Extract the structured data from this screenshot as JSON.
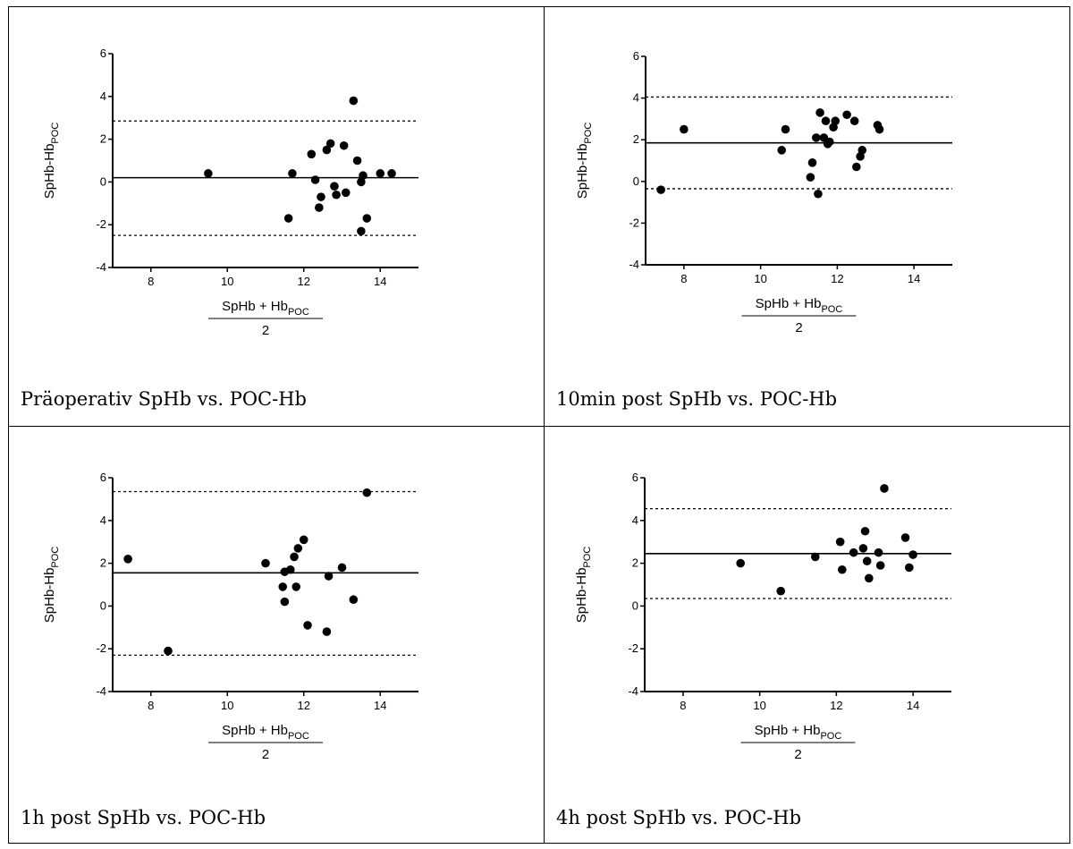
{
  "chart_data": [
    {
      "type": "scatter",
      "caption": "Präoperativ SpHb vs. POC-Hb",
      "ylabel_main": "SpHb-Hb",
      "ylabel_sub": "POC",
      "xlabel_main": "SpHb + Hb",
      "xlabel_sub": "POC",
      "xlabel_denominator": "2",
      "xlim": [
        7,
        15
      ],
      "ylim": [
        -4,
        6
      ],
      "xticks": [
        8,
        10,
        12,
        14
      ],
      "yticks": [
        6,
        4,
        2,
        0,
        -2,
        -4
      ],
      "mean_line": 0.2,
      "loa_upper": 2.85,
      "loa_lower": -2.5,
      "points": [
        [
          9.5,
          0.4
        ],
        [
          11.6,
          -1.7
        ],
        [
          11.7,
          0.4
        ],
        [
          12.2,
          1.3
        ],
        [
          12.3,
          0.1
        ],
        [
          12.4,
          -1.2
        ],
        [
          12.45,
          -0.7
        ],
        [
          12.6,
          1.5
        ],
        [
          12.7,
          1.8
        ],
        [
          12.8,
          -0.2
        ],
        [
          12.85,
          -0.6
        ],
        [
          13.05,
          1.7
        ],
        [
          13.1,
          -0.5
        ],
        [
          13.3,
          3.8
        ],
        [
          13.4,
          1.0
        ],
        [
          13.5,
          0.0
        ],
        [
          13.5,
          -2.3
        ],
        [
          13.55,
          0.3
        ],
        [
          13.65,
          -1.7
        ],
        [
          14.0,
          0.4
        ],
        [
          14.3,
          0.4
        ]
      ]
    },
    {
      "type": "scatter",
      "caption": "10min post SpHb vs. POC-Hb",
      "ylabel_main": "SpHb-Hb",
      "ylabel_sub": "POC",
      "xlabel_main": "SpHb + Hb",
      "xlabel_sub": "POC",
      "xlabel_denominator": "2",
      "xlim": [
        7,
        15
      ],
      "ylim": [
        -4,
        6
      ],
      "xticks": [
        8,
        10,
        12,
        14
      ],
      "yticks": [
        6,
        4,
        2,
        0,
        -2,
        -4
      ],
      "mean_line": 1.85,
      "loa_upper": 4.05,
      "loa_lower": -0.35,
      "points": [
        [
          7.4,
          -0.4
        ],
        [
          8.0,
          2.5
        ],
        [
          10.55,
          1.5
        ],
        [
          10.65,
          2.5
        ],
        [
          11.3,
          0.2
        ],
        [
          11.35,
          0.9
        ],
        [
          11.45,
          2.1
        ],
        [
          11.5,
          -0.6
        ],
        [
          11.55,
          3.3
        ],
        [
          11.65,
          2.1
        ],
        [
          11.7,
          2.9
        ],
        [
          11.75,
          1.8
        ],
        [
          11.8,
          1.9
        ],
        [
          11.9,
          2.6
        ],
        [
          11.95,
          2.9
        ],
        [
          12.25,
          3.2
        ],
        [
          12.45,
          2.9
        ],
        [
          12.5,
          0.7
        ],
        [
          12.6,
          1.2
        ],
        [
          12.65,
          1.5
        ],
        [
          13.05,
          2.7
        ],
        [
          13.1,
          2.5
        ]
      ]
    },
    {
      "type": "scatter",
      "caption": "1h post SpHb vs. POC-Hb",
      "ylabel_main": "SpHb-Hb",
      "ylabel_sub": "POC",
      "xlabel_main": "SpHb + Hb",
      "xlabel_sub": "POC",
      "xlabel_denominator": "2",
      "xlim": [
        7,
        15
      ],
      "ylim": [
        -4,
        6
      ],
      "xticks": [
        8,
        10,
        12,
        14
      ],
      "yticks": [
        6,
        4,
        2,
        0,
        -2,
        -4
      ],
      "mean_line": 1.55,
      "loa_upper": 5.35,
      "loa_lower": -2.3,
      "points": [
        [
          7.4,
          2.2
        ],
        [
          8.45,
          -2.1
        ],
        [
          11.0,
          2.0
        ],
        [
          11.45,
          0.9
        ],
        [
          11.5,
          1.6
        ],
        [
          11.5,
          0.2
        ],
        [
          11.65,
          1.7
        ],
        [
          11.75,
          2.3
        ],
        [
          11.8,
          0.9
        ],
        [
          11.85,
          2.7
        ],
        [
          12.0,
          3.1
        ],
        [
          12.1,
          -0.9
        ],
        [
          12.65,
          1.4
        ],
        [
          12.6,
          -1.2
        ],
        [
          13.0,
          1.8
        ],
        [
          13.3,
          0.3
        ],
        [
          13.65,
          5.3
        ]
      ]
    },
    {
      "type": "scatter",
      "caption": "4h post SpHb vs. POC-Hb",
      "ylabel_main": "SpHb-Hb",
      "ylabel_sub": "POC",
      "xlabel_main": "SpHb + Hb",
      "xlabel_sub": "POC",
      "xlabel_denominator": "2",
      "xlim": [
        7,
        15
      ],
      "ylim": [
        -4,
        6
      ],
      "xticks": [
        8,
        10,
        12,
        14
      ],
      "yticks": [
        6,
        4,
        2,
        0,
        -2,
        -4
      ],
      "mean_line": 2.45,
      "loa_upper": 4.55,
      "loa_lower": 0.35,
      "points": [
        [
          9.5,
          2.0
        ],
        [
          10.55,
          0.7
        ],
        [
          11.45,
          2.3
        ],
        [
          12.1,
          3.0
        ],
        [
          12.15,
          1.7
        ],
        [
          12.45,
          2.5
        ],
        [
          12.7,
          2.7
        ],
        [
          12.75,
          3.5
        ],
        [
          12.8,
          2.1
        ],
        [
          12.85,
          1.3
        ],
        [
          13.1,
          2.5
        ],
        [
          13.15,
          1.9
        ],
        [
          13.25,
          5.5
        ],
        [
          13.8,
          3.2
        ],
        [
          13.9,
          1.8
        ],
        [
          14.0,
          2.4
        ]
      ]
    }
  ]
}
